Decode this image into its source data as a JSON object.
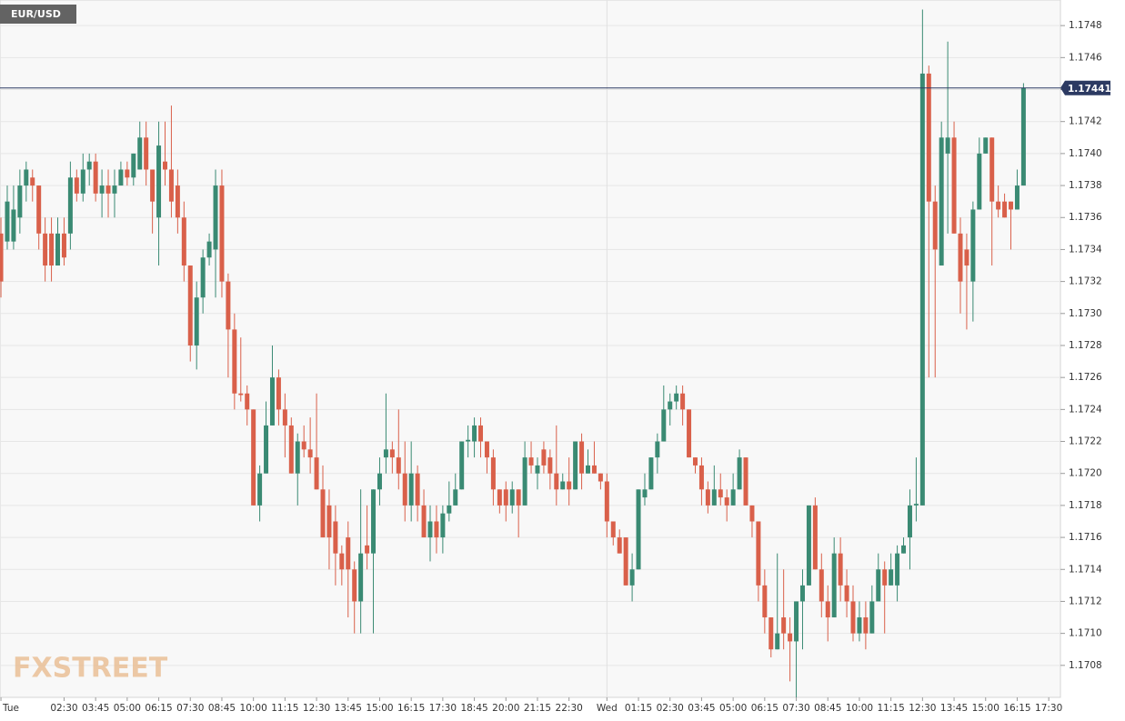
{
  "chart_data": {
    "type": "candlestick",
    "symbol": "EUR/USD",
    "watermark": "FXSTREET",
    "last_price": 1.17441,
    "up_color": "#3a8a73",
    "down_color": "#d9604a",
    "last_color": "#2c3a62",
    "grid": true,
    "ylim": [
      1.1706,
      1.17496
    ],
    "yticks": [
      1.1708,
      {
        "value": 1.171,
        "label": "1.1710"
      },
      1.1712,
      1.1714,
      1.1716,
      1.1718,
      {
        "value": 1.172,
        "label": "1.1720"
      },
      1.1722,
      1.1724,
      1.1726,
      1.1728,
      {
        "value": 1.173,
        "label": "1.1730"
      },
      1.1732,
      1.1734,
      1.1736,
      1.1738,
      {
        "value": 1.174,
        "label": "1.1740"
      },
      1.1742,
      1.1744,
      1.1746,
      1.1748
    ],
    "categories": [
      "Tue",
      null,
      null,
      null,
      null,
      null,
      null,
      null,
      null,
      null,
      "02:30",
      null,
      null,
      null,
      null,
      "03:45",
      null,
      null,
      null,
      null,
      "05:00",
      null,
      null,
      null,
      null,
      "06:15",
      null,
      null,
      null,
      null,
      "07:30",
      null,
      null,
      null,
      null,
      "08:45",
      null,
      null,
      null,
      null,
      "10:00",
      null,
      null,
      null,
      null,
      "11:15",
      null,
      null,
      null,
      null,
      "12:30",
      null,
      null,
      null,
      null,
      "13:45",
      null,
      null,
      null,
      null,
      "15:00",
      null,
      null,
      null,
      null,
      "16:15",
      null,
      null,
      null,
      null,
      "17:30",
      null,
      null,
      null,
      null,
      "18:45",
      null,
      null,
      null,
      null,
      "20:00",
      null,
      null,
      null,
      null,
      "21:15",
      null,
      null,
      null,
      null,
      "22:30",
      null,
      null,
      null,
      null,
      null,
      "Wed",
      null,
      null,
      null,
      null,
      "01:15",
      null,
      null,
      null,
      null,
      "02:30",
      null,
      null,
      null,
      null,
      "03:45",
      null,
      null,
      null,
      null,
      "05:00",
      null,
      null,
      null,
      null,
      "06:15",
      null,
      null,
      null,
      null,
      "07:30",
      null,
      null,
      null,
      null,
      "08:45",
      null,
      null,
      null,
      null,
      "10:00",
      null,
      null,
      null,
      null,
      "11:15",
      null,
      null,
      null,
      null,
      "12:30",
      null,
      null,
      null,
      null,
      "13:45",
      null,
      null,
      null,
      null,
      "15:00",
      null,
      null,
      null,
      null,
      "16:15",
      null,
      null,
      null,
      null,
      "17:30"
    ],
    "open": [
      1.1735,
      1.17345,
      1.17345,
      1.1736,
      1.1738,
      1.17385,
      1.1738,
      1.1735,
      1.1735,
      1.1733,
      1.1735,
      1.1735,
      1.17385,
      1.17375,
      1.1739,
      1.17395,
      1.17375,
      1.1738,
      1.17375,
      1.1738,
      1.1739,
      1.17385,
      1.1739,
      1.1741,
      1.1739,
      1.1736,
      1.17395,
      1.1739,
      1.1738,
      1.1736,
      1.1733,
      1.1728,
      1.1731,
      1.17335,
      1.1734,
      1.1738,
      1.1732,
      1.1729,
      1.1725,
      1.1725,
      1.1724,
      1.1718,
      1.172,
      1.1723,
      1.1726,
      1.1724,
      1.1723,
      1.172,
      1.1722,
      1.17215,
      1.1721,
      1.1719,
      1.1718,
      1.1717,
      1.1715,
      1.1716,
      1.1714,
      1.1712,
      1.17155,
      1.1715,
      1.1719,
      1.1721,
      1.17215,
      1.1721,
      1.172,
      1.1718,
      1.172,
      1.1718,
      1.1716,
      1.1717,
      1.1716,
      1.17175,
      1.1718,
      1.1719,
      1.1722,
      1.1722,
      1.1723,
      1.1722,
      1.1721,
      1.1719,
      1.1719,
      1.1718,
      1.1719,
      1.1718,
      1.1721,
      1.172,
      1.17215,
      1.1721,
      1.172,
      1.1719,
      1.17195,
      1.1719,
      1.1722,
      1.172,
      1.17205,
      1.172,
      1.17195,
      1.1717,
      1.1716,
      1.1716,
      1.1713,
      1.1714,
      1.17185,
      1.1719,
      1.1721,
      1.1722,
      1.1724,
      1.17245,
      1.1725,
      1.1724,
      1.1721,
      1.17205,
      1.1719,
      1.1718,
      1.1719,
      1.17185,
      1.1718,
      1.1719,
      1.1721,
      1.1718,
      1.1717,
      1.1713,
      1.1711,
      1.1709,
      1.1711,
      1.171,
      1.17095,
      1.1712,
      1.1713,
      1.1718,
      1.1714,
      1.1712,
      1.1711,
      1.1715,
      1.1713,
      1.1712,
      1.171,
      1.1711,
      1.171,
      1.1712,
      1.1714,
      1.1713,
      1.1713,
      1.1715,
      1.1716,
      1.1718,
      1.1718,
      1.1745,
      1.1737,
      1.1733,
      1.174,
      1.1741,
      1.1735,
      1.1734,
      1.1732,
      1.17365,
      1.174,
      1.1741,
      1.1737,
      1.1737,
      1.1737,
      1.17365,
      1.1738,
      null,
      null,
      null,
      null
    ],
    "high": [
      1.1736,
      1.1738,
      1.1738,
      1.1739,
      1.17395,
      1.1739,
      1.1738,
      1.1736,
      1.1736,
      1.1736,
      1.1736,
      1.17395,
      1.1739,
      1.174,
      1.174,
      1.174,
      1.1739,
      1.1739,
      1.1739,
      1.17395,
      1.17395,
      1.174,
      1.1742,
      1.1742,
      1.1739,
      1.1742,
      1.1742,
      1.1743,
      1.1739,
      1.1737,
      1.1733,
      1.1732,
      1.1734,
      1.1735,
      1.1739,
      1.1739,
      1.17325,
      1.173,
      1.17285,
      1.17255,
      1.1724,
      1.17205,
      1.17245,
      1.1728,
      1.17265,
      1.1725,
      1.17235,
      1.17225,
      1.1723,
      1.17235,
      1.1725,
      1.17205,
      1.1719,
      1.1718,
      1.17155,
      1.1717,
      1.17145,
      1.1719,
      1.1718,
      1.1719,
      1.1721,
      1.1725,
      1.1722,
      1.1724,
      1.1722,
      1.1722,
      1.17205,
      1.1719,
      1.1718,
      1.1718,
      1.1718,
      1.17195,
      1.172,
      1.1722,
      1.1723,
      1.17235,
      1.17235,
      1.1722,
      1.17215,
      1.1719,
      1.17195,
      1.17195,
      1.1719,
      1.1722,
      1.1722,
      1.1721,
      1.1722,
      1.17215,
      1.1723,
      1.172,
      1.1721,
      1.1722,
      1.17225,
      1.17215,
      1.1722,
      1.172,
      1.172,
      1.1717,
      1.17165,
      1.1716,
      1.1715,
      1.1719,
      1.172,
      1.1721,
      1.17225,
      1.17255,
      1.1725,
      1.17255,
      1.17255,
      1.1724,
      1.1721,
      1.1721,
      1.17195,
      1.17205,
      1.172,
      1.1719,
      1.172,
      1.17215,
      1.1721,
      1.1718,
      1.1717,
      1.1714,
      1.1711,
      1.1715,
      1.1714,
      1.1711,
      1.1712,
      1.1714,
      1.1718,
      1.17185,
      1.1715,
      1.1713,
      1.1716,
      1.1716,
      1.1714,
      1.1713,
      1.1712,
      1.1712,
      1.1713,
      1.1715,
      1.17145,
      1.1715,
      1.17155,
      1.1716,
      1.1719,
      1.1721,
      1.1749,
      1.17455,
      1.1738,
      1.1742,
      1.1747,
      1.1742,
      1.1736,
      1.1735,
      1.1737,
      1.1741,
      1.1741,
      1.1741,
      1.1738,
      1.17375,
      1.1737,
      1.1739,
      1.17444,
      null,
      null,
      null,
      null
    ],
    "low": [
      1.1731,
      1.1734,
      1.1734,
      1.1735,
      1.1737,
      1.1737,
      1.1734,
      1.1732,
      1.1732,
      1.1733,
      1.1733,
      1.1734,
      1.1737,
      1.1737,
      1.1738,
      1.1737,
      1.1736,
      1.1736,
      1.1736,
      1.1738,
      1.1738,
      1.1738,
      1.1739,
      1.1738,
      1.1735,
      1.1733,
      1.1738,
      1.1736,
      1.1735,
      1.1732,
      1.1727,
      1.17265,
      1.173,
      1.1733,
      1.1731,
      1.1731,
      1.1726,
      1.1724,
      1.17245,
      1.1723,
      1.1718,
      1.1717,
      1.172,
      1.1723,
      1.1723,
      1.1721,
      1.172,
      1.1718,
      1.1721,
      1.172,
      1.1719,
      1.1716,
      1.1714,
      1.1713,
      1.1713,
      1.1711,
      1.171,
      1.171,
      1.1714,
      1.171,
      1.1718,
      1.172,
      1.172,
      1.1719,
      1.1717,
      1.1717,
      1.1717,
      1.1716,
      1.17145,
      1.1715,
      1.1715,
      1.1717,
      1.1718,
      1.1719,
      1.1721,
      1.1721,
      1.1721,
      1.172,
      1.1718,
      1.17175,
      1.1717,
      1.17175,
      1.1716,
      1.1718,
      1.172,
      1.1719,
      1.172,
      1.1719,
      1.1718,
      1.1719,
      1.1718,
      1.1719,
      1.1719,
      1.172,
      1.172,
      1.1719,
      1.1716,
      1.17155,
      1.1715,
      1.1713,
      1.1712,
      1.1714,
      1.1718,
      1.1719,
      1.172,
      1.1722,
      1.1723,
      1.1724,
      1.1723,
      1.1721,
      1.172,
      1.1718,
      1.17175,
      1.1718,
      1.1718,
      1.1717,
      1.1718,
      1.1719,
      1.1718,
      1.1716,
      1.1712,
      1.171,
      1.17085,
      1.1709,
      1.1709,
      1.1707,
      1.1706,
      1.1709,
      1.1713,
      1.1714,
      1.1711,
      1.17095,
      1.1711,
      1.1712,
      1.1711,
      1.17095,
      1.17095,
      1.1709,
      1.171,
      1.1712,
      1.171,
      1.1713,
      1.1712,
      1.1715,
      1.1714,
      1.1717,
      1.1718,
      1.1726,
      1.1726,
      1.1733,
      1.1735,
      1.1735,
      1.173,
      1.1729,
      1.17295,
      1.17365,
      1.174,
      1.1733,
      1.1736,
      1.1736,
      1.1734,
      1.17365,
      1.1738,
      null,
      null,
      null,
      null
    ],
    "close": [
      1.1732,
      1.1737,
      1.17365,
      1.1738,
      1.1739,
      1.1738,
      1.1735,
      1.1733,
      1.1733,
      1.1735,
      1.17335,
      1.17385,
      1.17375,
      1.1739,
      1.17395,
      1.17375,
      1.1738,
      1.17375,
      1.1738,
      1.1739,
      1.17385,
      1.174,
      1.1741,
      1.1739,
      1.1737,
      1.17405,
      1.1739,
      1.1737,
      1.1736,
      1.1733,
      1.1728,
      1.1731,
      1.17335,
      1.17345,
      1.1738,
      1.1732,
      1.1729,
      1.1725,
      1.17249,
      1.1724,
      1.1718,
      1.172,
      1.1723,
      1.1726,
      1.1724,
      1.1723,
      1.172,
      1.1722,
      1.17215,
      1.1721,
      1.1719,
      1.1716,
      1.1716,
      1.1715,
      1.1714,
      1.1714,
      1.1712,
      1.1715,
      1.1715,
      1.1719,
      1.172,
      1.17215,
      1.1721,
      1.172,
      1.1718,
      1.172,
      1.1718,
      1.1716,
      1.1717,
      1.1716,
      1.17175,
      1.1718,
      1.1719,
      1.1722,
      1.17221,
      1.1723,
      1.1722,
      1.1721,
      1.1719,
      1.1718,
      1.1718,
      1.1719,
      1.1718,
      1.1721,
      1.17205,
      1.17205,
      1.17205,
      1.172,
      1.1719,
      1.17195,
      1.1719,
      1.1722,
      1.172,
      1.17205,
      1.172,
      1.17195,
      1.1717,
      1.1716,
      1.1715,
      1.1713,
      1.1714,
      1.1719,
      1.1719,
      1.1721,
      1.1722,
      1.1724,
      1.17245,
      1.1725,
      1.1724,
      1.1721,
      1.17205,
      1.1719,
      1.1718,
      1.1719,
      1.17185,
      1.1718,
      1.1719,
      1.1721,
      1.1718,
      1.1717,
      1.1713,
      1.1711,
      1.1709,
      1.171,
      1.171,
      1.17095,
      1.1712,
      1.1713,
      1.1718,
      1.1714,
      1.1712,
      1.1711,
      1.1715,
      1.1713,
      1.1712,
      1.171,
      1.1711,
      1.171,
      1.1712,
      1.1714,
      1.1713,
      1.1714,
      1.1715,
      1.17155,
      1.1718,
      1.17181,
      1.1745,
      1.1737,
      1.1734,
      1.1741,
      1.1741,
      1.1735,
      1.1732,
      1.1733,
      1.17365,
      1.174,
      1.1741,
      1.1737,
      1.17365,
      1.1736,
      1.17365,
      1.1738,
      1.17441,
      null,
      null,
      null,
      null
    ]
  }
}
